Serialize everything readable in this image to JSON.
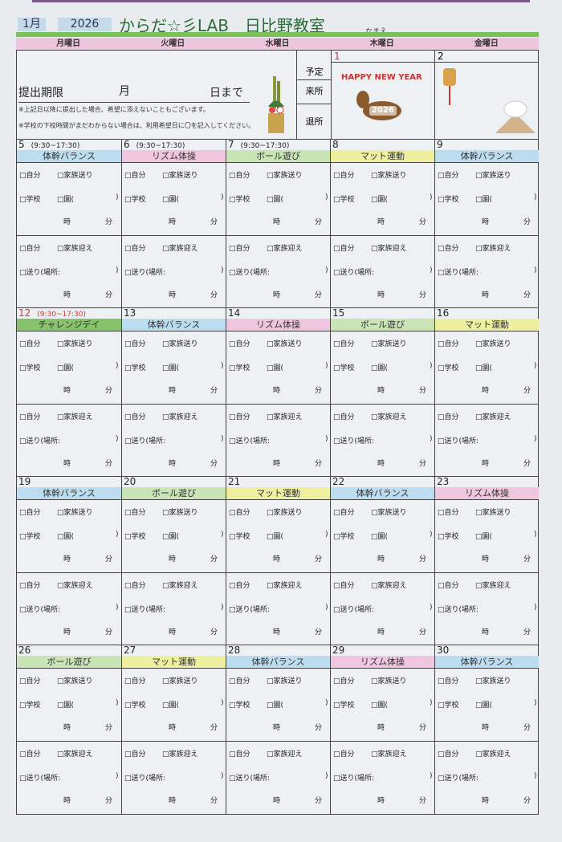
{
  "header": {
    "month": "1月",
    "year": "2026",
    "title": "からだ☆彡LAB　日比野教室",
    "name_label": "なまえ"
  },
  "weekdays": [
    "月曜日",
    "火曜日",
    "水曜日",
    "木曜日",
    "金曜日"
  ],
  "top": {
    "deadline_label": "提出期限",
    "month_unit": "月",
    "day_unit": "日まで",
    "notes": [
      "※上記日以降に提出した場合、希望に添えないこともございます。",
      "※学校の下校時間がまだわからない場合は、利用希望日に〇を記入してください。"
    ],
    "row_labels": [
      "予定",
      "来所",
      "退所"
    ],
    "days": [
      {
        "num": "1",
        "image": "horse-2026",
        "text": "HAPPY NEW YEAR",
        "badge": "2026"
      },
      {
        "num": "2",
        "image": "new-year-decorations"
      }
    ]
  },
  "form": {
    "self": "□自分",
    "family_drop": "□家族送り",
    "school": "□学校",
    "kindergarten": "□園(",
    "close": ")",
    "hour": "時",
    "minute": "分",
    "family_pick": "□家族迎え",
    "send": "□送り(場所:"
  },
  "colors": {
    "blue": "#bcdcef",
    "pink": "#f0c5de",
    "green": "#c9e5b5",
    "yellow": "#eef0a0",
    "darkgreen": "#86c36a",
    "holiday": "#c33333"
  },
  "weeks": [
    [
      {
        "num": "5",
        "time": "(9:30~17:30)",
        "act": "体幹バランス",
        "color": "blue"
      },
      {
        "num": "6",
        "time": "(9:30~17:30)",
        "act": "リズム体操",
        "color": "pink"
      },
      {
        "num": "7",
        "time": "(9:30~17:30)",
        "act": "ボール遊び",
        "color": "green"
      },
      {
        "num": "8",
        "act": "マット運動",
        "color": "yellow"
      },
      {
        "num": "9",
        "act": "体幹バランス",
        "color": "blue"
      }
    ],
    [
      {
        "num": "12",
        "time": "(9:30~17:30)",
        "act": "チャレンジデイ",
        "color": "darkgreen",
        "holiday": true
      },
      {
        "num": "13",
        "act": "体幹バランス",
        "color": "blue"
      },
      {
        "num": "14",
        "act": "リズム体操",
        "color": "pink"
      },
      {
        "num": "15",
        "act": "ボール遊び",
        "color": "green"
      },
      {
        "num": "16",
        "act": "マット運動",
        "color": "yellow"
      }
    ],
    [
      {
        "num": "19",
        "act": "体幹バランス",
        "color": "blue"
      },
      {
        "num": "20",
        "act": "ボール遊び",
        "color": "green"
      },
      {
        "num": "21",
        "act": "マット運動",
        "color": "yellow"
      },
      {
        "num": "22",
        "act": "体幹バランス",
        "color": "blue"
      },
      {
        "num": "23",
        "act": "リズム体操",
        "color": "pink"
      }
    ],
    [
      {
        "num": "26",
        "act": "ボール遊び",
        "color": "green"
      },
      {
        "num": "27",
        "act": "マット運動",
        "color": "yellow"
      },
      {
        "num": "28",
        "act": "体幹バランス",
        "color": "blue"
      },
      {
        "num": "29",
        "act": "リズム体操",
        "color": "pink"
      },
      {
        "num": "30",
        "act": "体幹バランス",
        "color": "blue"
      }
    ]
  ]
}
